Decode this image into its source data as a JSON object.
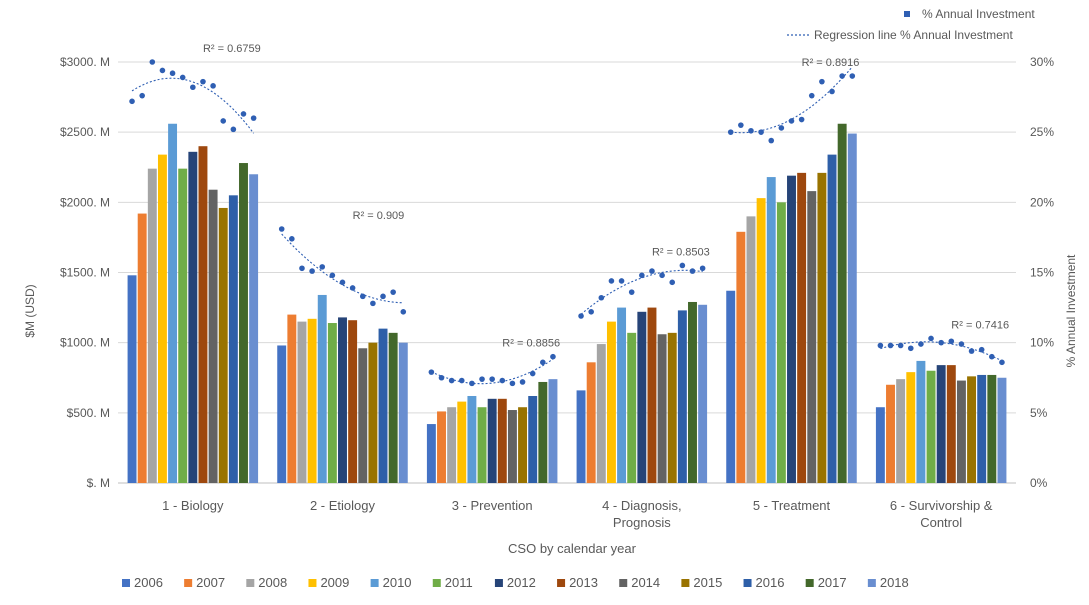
{
  "chart_data": {
    "type": "bar",
    "xlabel": "CSO by calendar year",
    "ylabel": "$M (USD)",
    "y2label": "% Annual Investment",
    "ylim": [
      0,
      3000
    ],
    "y2lim": [
      0,
      30
    ],
    "yticks": [
      "$. M",
      "$500. M",
      "$1000. M",
      "$1500. M",
      "$2000. M",
      "$2500. M",
      "$3000. M"
    ],
    "y2ticks": [
      "0%",
      "5%",
      "10%",
      "15%",
      "20%",
      "25%",
      "30%"
    ],
    "grid": true,
    "legend_placement": "bottom",
    "categories": [
      "1 - Biology",
      "2 - Etiology",
      "3 - Prevention",
      "4 - Diagnosis, Prognosis",
      "5 - Treatment",
      "6 - Survivorship & Control"
    ],
    "series": [
      {
        "name": "2006",
        "color": "#4472C4",
        "values": [
          1480,
          980,
          420,
          660,
          1370,
          540
        ]
      },
      {
        "name": "2007",
        "color": "#ED7D31",
        "values": [
          1920,
          1200,
          510,
          860,
          1790,
          700
        ]
      },
      {
        "name": "2008",
        "color": "#A5A5A5",
        "values": [
          2240,
          1150,
          540,
          990,
          1900,
          740
        ]
      },
      {
        "name": "2009",
        "color": "#FFC000",
        "values": [
          2340,
          1170,
          580,
          1150,
          2030,
          790
        ]
      },
      {
        "name": "2010",
        "color": "#5B9BD5",
        "values": [
          2560,
          1340,
          620,
          1250,
          2180,
          870
        ]
      },
      {
        "name": "2011",
        "color": "#70AD47",
        "values": [
          2240,
          1140,
          540,
          1070,
          2000,
          800
        ]
      },
      {
        "name": "2012",
        "color": "#264478",
        "values": [
          2360,
          1180,
          600,
          1220,
          2190,
          840
        ]
      },
      {
        "name": "2013",
        "color": "#9E480E",
        "values": [
          2400,
          1160,
          600,
          1250,
          2210,
          840
        ]
      },
      {
        "name": "2014",
        "color": "#636363",
        "values": [
          2090,
          960,
          520,
          1060,
          2080,
          730
        ]
      },
      {
        "name": "2015",
        "color": "#997300",
        "values": [
          1960,
          1000,
          540,
          1070,
          2210,
          760
        ]
      },
      {
        "name": "2016",
        "color": "#2E5FA8",
        "values": [
          2050,
          1100,
          620,
          1230,
          2340,
          770
        ]
      },
      {
        "name": "2017",
        "color": "#43682B",
        "values": [
          2280,
          1070,
          720,
          1290,
          2560,
          770
        ]
      },
      {
        "name": "2018",
        "color": "#698ED0",
        "values": [
          2200,
          1000,
          740,
          1270,
          2490,
          750
        ]
      }
    ],
    "pct_series": {
      "name": "% Annual Investment",
      "color": "#2F5FB3",
      "values": [
        [
          27.2,
          27.6,
          30.0,
          29.4,
          29.2,
          28.9,
          28.2,
          28.6,
          28.3,
          25.8,
          25.2,
          26.3,
          26.0
        ],
        [
          18.1,
          17.4,
          15.3,
          15.1,
          15.4,
          14.8,
          14.3,
          13.9,
          13.3,
          12.8,
          13.3,
          13.6,
          12.2
        ],
        [
          7.9,
          7.5,
          7.3,
          7.3,
          7.1,
          7.4,
          7.4,
          7.3,
          7.1,
          7.2,
          7.8,
          8.6,
          9.0
        ],
        [
          11.9,
          12.2,
          13.2,
          14.4,
          14.4,
          13.6,
          14.8,
          15.1,
          14.8,
          14.3,
          15.5,
          15.1,
          15.3
        ],
        [
          25.0,
          25.5,
          25.1,
          25.0,
          24.4,
          25.3,
          25.8,
          25.9,
          27.6,
          28.6,
          27.9,
          29.0,
          29.0
        ],
        [
          9.8,
          9.8,
          9.8,
          9.6,
          9.9,
          10.3,
          10.0,
          10.1,
          9.9,
          9.4,
          9.5,
          9.0,
          8.6
        ]
      ]
    },
    "regression_label": "Regression line % Annual Investment",
    "r2_labels": [
      "R² = 0.6759",
      "R² = 0.909",
      "R² = 0.8856",
      "R² = 0.8503",
      "R² = 0.8916",
      "R² = 0.7416"
    ]
  }
}
